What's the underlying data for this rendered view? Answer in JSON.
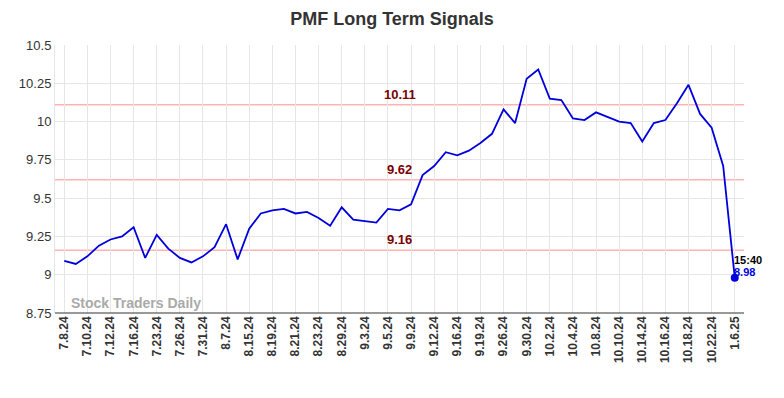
{
  "chart_data": {
    "type": "line",
    "title": "PMF Long Term Signals",
    "color": "#0000dd",
    "grid": true,
    "categories": [
      "7.8.24",
      null,
      "7.10.24",
      null,
      "7.12.24",
      null,
      "7.16.24",
      null,
      "7.23.24",
      null,
      "7.26.24",
      null,
      "7.31.24",
      null,
      "8.7.24",
      null,
      "8.15.24",
      null,
      "8.19.24",
      null,
      "8.21.24",
      null,
      "8.23.24",
      null,
      "8.29.24",
      null,
      "9.3.24",
      null,
      "9.5.24",
      null,
      "9.9.24",
      null,
      "9.12.24",
      null,
      "9.16.24",
      null,
      "9.19.24",
      null,
      "9.26.24",
      null,
      "9.30.24",
      null,
      "10.2.24",
      null,
      "10.4.24",
      null,
      "10.8.24",
      null,
      "10.10.24",
      null,
      "10.14.24",
      null,
      "10.16.24",
      null,
      "10.18.24",
      null,
      "10.22.24",
      null,
      "1.6.25"
    ],
    "values": [
      9.09,
      9.07,
      9.12,
      9.19,
      9.23,
      9.25,
      9.31,
      9.11,
      9.26,
      9.17,
      9.11,
      9.08,
      9.12,
      9.18,
      9.33,
      9.1,
      9.3,
      9.4,
      9.42,
      9.43,
      9.4,
      9.41,
      9.37,
      9.32,
      9.44,
      9.36,
      9.35,
      9.34,
      9.43,
      9.42,
      9.46,
      9.65,
      9.71,
      9.8,
      9.78,
      9.81,
      9.86,
      9.92,
      10.08,
      9.99,
      10.28,
      10.34,
      10.15,
      10.14,
      10.02,
      10.01,
      10.06,
      10.03,
      10.0,
      9.99,
      9.87,
      9.99,
      10.01,
      10.12,
      10.24,
      10.05,
      9.96,
      9.71,
      8.98
    ],
    "ylim": [
      8.75,
      10.5
    ],
    "yticks": [
      8.75,
      9,
      9.25,
      9.5,
      9.75,
      10,
      10.25,
      10.5
    ],
    "levels": [
      10.11,
      9.62,
      9.16
    ],
    "last_label": "15:40",
    "watermark": "Stock Traders Daily"
  }
}
